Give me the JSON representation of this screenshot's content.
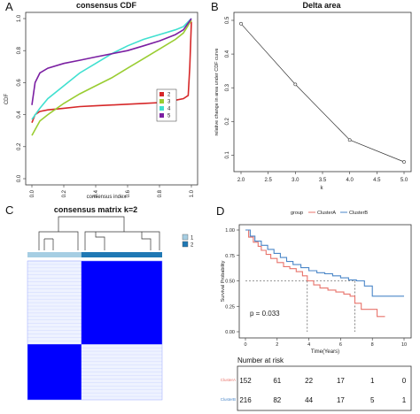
{
  "panels": {
    "A": "A",
    "B": "B",
    "C": "C",
    "D": "D"
  },
  "chart_data": [
    {
      "id": "A",
      "type": "line",
      "title": "consensus CDF",
      "xlabel": "consensus index",
      "ylabel": "CDF",
      "xlim": [
        0,
        1
      ],
      "ylim": [
        0,
        1
      ],
      "xticks": [
        "0.0",
        "0.2",
        "0.4",
        "0.6",
        "0.8",
        "1.0"
      ],
      "yticks": [
        "0.0",
        "0.2",
        "0.4",
        "0.6",
        "0.8",
        "1.0"
      ],
      "legend": {
        "placement": "right",
        "entries": [
          "2",
          "3",
          "4",
          "5"
        ]
      },
      "colors": [
        "#d62728",
        "#9acd32",
        "#40e0d0",
        "#7b1fa2"
      ],
      "series": [
        {
          "name": "2",
          "x": [
            0,
            0.02,
            0.05,
            0.1,
            0.2,
            0.3,
            0.4,
            0.5,
            0.6,
            0.7,
            0.8,
            0.9,
            0.95,
            0.98,
            0.99,
            1.0
          ],
          "y": [
            0.35,
            0.4,
            0.42,
            0.43,
            0.44,
            0.45,
            0.455,
            0.46,
            0.465,
            0.47,
            0.475,
            0.49,
            0.5,
            0.52,
            0.7,
            0.98
          ]
        },
        {
          "name": "3",
          "x": [
            0,
            0.05,
            0.1,
            0.2,
            0.3,
            0.4,
            0.5,
            0.6,
            0.7,
            0.8,
            0.9,
            0.95,
            1.0
          ],
          "y": [
            0.27,
            0.36,
            0.4,
            0.47,
            0.53,
            0.58,
            0.63,
            0.69,
            0.75,
            0.81,
            0.87,
            0.91,
            0.99
          ]
        },
        {
          "name": "4",
          "x": [
            0,
            0.05,
            0.1,
            0.2,
            0.3,
            0.4,
            0.5,
            0.6,
            0.7,
            0.8,
            0.9,
            0.95,
            1.0
          ],
          "y": [
            0.37,
            0.44,
            0.5,
            0.58,
            0.66,
            0.72,
            0.78,
            0.83,
            0.87,
            0.9,
            0.93,
            0.95,
            1.0
          ]
        },
        {
          "name": "5",
          "x": [
            0,
            0.02,
            0.05,
            0.1,
            0.2,
            0.3,
            0.4,
            0.5,
            0.6,
            0.7,
            0.8,
            0.9,
            0.95,
            1.0
          ],
          "y": [
            0.46,
            0.6,
            0.66,
            0.69,
            0.72,
            0.74,
            0.76,
            0.78,
            0.8,
            0.83,
            0.86,
            0.9,
            0.93,
            1.0
          ]
        }
      ]
    },
    {
      "id": "B",
      "type": "line",
      "title": "Delta area",
      "xlabel": "k",
      "ylabel": "relative change in area under CDF curve",
      "xlim": [
        2,
        5
      ],
      "ylim": [
        0.08,
        0.5
      ],
      "xticks": [
        "2.0",
        "2.5",
        "3.0",
        "3.5",
        "4.0",
        "4.5",
        "5.0"
      ],
      "yticks": [
        "0.1",
        "0.2",
        "0.3",
        "0.4",
        "0.5"
      ],
      "x": [
        2,
        3,
        4,
        5
      ],
      "y": [
        0.49,
        0.31,
        0.145,
        0.08
      ]
    },
    {
      "id": "C",
      "type": "heatmap",
      "title": "consensus matrix k=2",
      "legend": {
        "placement": "top-right",
        "entries": [
          "1",
          "2"
        ]
      },
      "colors": {
        "cluster1": "#a6cee3",
        "cluster2": "#1f78b4",
        "high": "#0000ff",
        "low": "#ffffff"
      },
      "clusters": [
        {
          "name": "1",
          "fraction": 0.4
        },
        {
          "name": "2",
          "fraction": 0.6
        }
      ]
    },
    {
      "id": "D",
      "type": "line",
      "legend": {
        "title": "group",
        "placement": "top",
        "entries": [
          "ClusterA",
          "ClusterB"
        ]
      },
      "colors": [
        "#e8736b",
        "#4a86c8"
      ],
      "xlabel": "Time(Years)",
      "ylabel": "Survival Probability",
      "xlim": [
        0,
        10
      ],
      "ylim": [
        0,
        1
      ],
      "xticks": [
        "0",
        "2",
        "4",
        "6",
        "8",
        "10"
      ],
      "yticks": [
        "0.00",
        "0.25",
        "0.50",
        "0.75",
        "1.00"
      ],
      "pvalue": "p = 0.033",
      "median": {
        "y": 0.5,
        "x": [
          3.9,
          6.9
        ]
      },
      "series": [
        {
          "name": "ClusterA",
          "x": [
            0,
            0.2,
            0.5,
            0.8,
            1.0,
            1.3,
            1.6,
            2.0,
            2.4,
            2.8,
            3.2,
            3.6,
            3.9,
            4.3,
            4.7,
            5.2,
            5.7,
            6.2,
            6.6,
            6.9,
            7.3,
            7.8,
            8.3,
            8.8
          ],
          "y": [
            1.0,
            0.93,
            0.88,
            0.84,
            0.8,
            0.76,
            0.72,
            0.68,
            0.64,
            0.62,
            0.59,
            0.55,
            0.5,
            0.46,
            0.43,
            0.41,
            0.39,
            0.37,
            0.35,
            0.28,
            0.22,
            0.22,
            0.15,
            0.15
          ]
        },
        {
          "name": "ClusterB",
          "x": [
            0,
            0.3,
            0.6,
            1.0,
            1.4,
            1.8,
            2.2,
            2.6,
            3.0,
            3.5,
            4.0,
            4.5,
            5.0,
            5.5,
            6.0,
            6.5,
            7.0,
            7.5,
            8.0,
            8.5,
            9.0,
            10.0
          ],
          "y": [
            1.0,
            0.94,
            0.89,
            0.85,
            0.81,
            0.77,
            0.73,
            0.69,
            0.66,
            0.63,
            0.6,
            0.58,
            0.57,
            0.55,
            0.53,
            0.51,
            0.5,
            0.45,
            0.35,
            0.35,
            0.35,
            0.35
          ]
        }
      ],
      "risk_table": {
        "title": "Number at risk",
        "times": [
          0,
          2,
          4,
          6,
          8,
          10
        ],
        "rows": [
          {
            "name": "ClusterA",
            "values": [
              "152",
              "61",
              "22",
              "17",
              "1",
              "0"
            ]
          },
          {
            "name": "ClusterB",
            "values": [
              "216",
              "82",
              "44",
              "17",
              "5",
              "1"
            ]
          }
        ]
      }
    }
  ]
}
